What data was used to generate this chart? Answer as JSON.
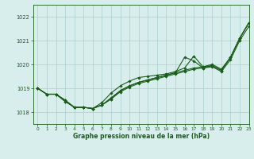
{
  "title": "Graphe pression niveau de la mer (hPa)",
  "background_color": "#d8eeed",
  "grid_color": "#aacfcc",
  "line_color": "#1a5c1a",
  "xlim": [
    -0.5,
    23
  ],
  "ylim": [
    1017.5,
    1022.5
  ],
  "yticks": [
    1018,
    1019,
    1020,
    1021,
    1022
  ],
  "xticks": [
    0,
    1,
    2,
    3,
    4,
    5,
    6,
    7,
    8,
    9,
    10,
    11,
    12,
    13,
    14,
    15,
    16,
    17,
    18,
    19,
    20,
    21,
    22,
    23
  ],
  "series1_x": [
    0,
    1,
    2,
    3,
    4,
    5,
    6,
    7,
    8,
    9,
    10,
    11,
    12,
    13,
    14,
    15,
    16,
    17,
    18,
    19,
    20,
    21,
    22,
    23
  ],
  "series1": [
    1019.0,
    1018.75,
    1018.75,
    1018.5,
    1018.2,
    1018.2,
    1018.15,
    1018.3,
    1018.6,
    1018.9,
    1019.1,
    1019.25,
    1019.35,
    1019.45,
    1019.55,
    1019.65,
    1019.75,
    1019.85,
    1019.9,
    1019.95,
    1019.75,
    1020.3,
    1021.1,
    1021.75
  ],
  "series2_x": [
    0,
    1,
    2,
    3,
    4,
    5,
    6,
    7,
    8,
    9,
    10,
    11,
    12,
    13,
    14,
    15,
    16,
    17,
    18,
    19,
    20,
    21,
    22,
    23
  ],
  "series2": [
    1019.0,
    1018.75,
    1018.75,
    1018.5,
    1018.2,
    1018.2,
    1018.15,
    1018.3,
    1018.55,
    1018.85,
    1019.05,
    1019.2,
    1019.3,
    1019.4,
    1019.5,
    1019.6,
    1019.7,
    1019.8,
    1019.85,
    1019.9,
    1019.7,
    1020.2,
    1021.0,
    1021.6
  ],
  "series3_x": [
    0,
    1,
    2,
    3,
    4,
    5,
    6,
    7,
    8,
    9,
    10,
    11,
    12,
    13,
    14,
    15,
    16,
    17,
    18,
    19,
    20,
    21,
    22,
    23
  ],
  "series3": [
    1019.0,
    1018.75,
    1018.75,
    1018.45,
    1018.2,
    1018.2,
    1018.15,
    1018.4,
    1018.8,
    1019.1,
    1019.3,
    1019.45,
    1019.5,
    1019.55,
    1019.6,
    1019.7,
    1019.85,
    1020.35,
    1019.9,
    1020.0,
    1019.8,
    1020.3,
    1021.1,
    1021.75
  ],
  "series4_x": [
    0,
    1,
    2,
    3,
    4,
    5,
    6,
    7,
    8,
    9,
    10,
    11,
    12,
    13,
    14,
    15,
    16,
    17,
    18,
    19,
    20,
    21,
    22,
    23
  ],
  "series4": [
    1019.0,
    1018.75,
    1018.75,
    1018.45,
    1018.2,
    1018.2,
    1018.15,
    1018.3,
    1018.55,
    1018.9,
    1019.1,
    1019.25,
    1019.35,
    1019.45,
    1019.55,
    1019.65,
    1020.3,
    1020.15,
    1019.85,
    1019.95,
    1019.75,
    1020.3,
    1021.1,
    1021.75
  ]
}
